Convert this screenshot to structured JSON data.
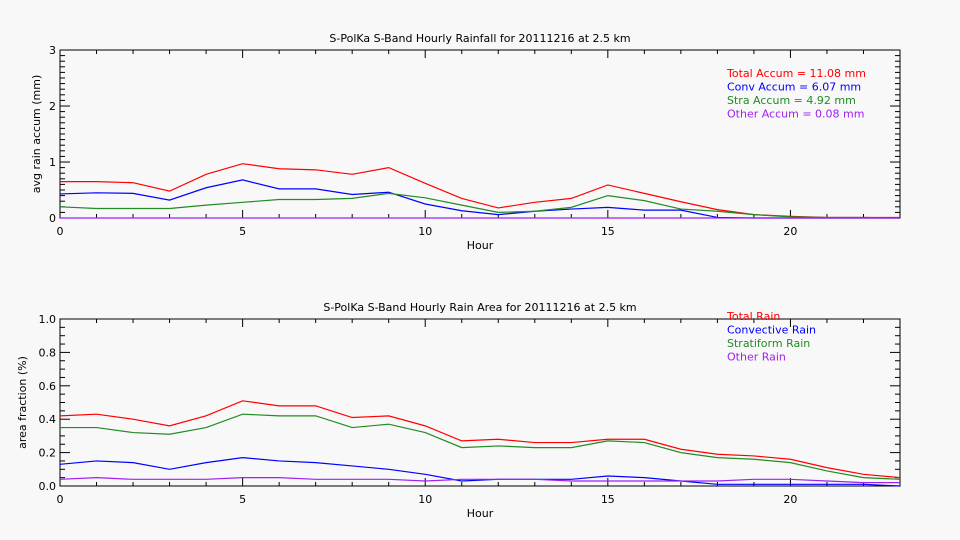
{
  "colors": {
    "total": "#ff0000",
    "convective": "#0000ff",
    "stratiform": "#228b22",
    "other": "#a020f0",
    "axes": "#000000",
    "background": "#f8f8f8"
  },
  "chart_data": [
    {
      "type": "line",
      "title": "S-PolKa S-Band Hourly Rainfall for 20111216 at 2.5 km",
      "xlabel": "Hour",
      "ylabel": "avg rain accum (mm)",
      "xlim": [
        0,
        23
      ],
      "ylim": [
        0,
        3
      ],
      "xticks": [
        "0",
        "5",
        "10",
        "15",
        "20"
      ],
      "yticks": [
        "0",
        "1",
        "2",
        "3"
      ],
      "legend_position": "top-right",
      "x": [
        0,
        1,
        2,
        3,
        4,
        5,
        6,
        7,
        8,
        9,
        10,
        11,
        12,
        13,
        14,
        15,
        16,
        17,
        18,
        19,
        20,
        21,
        22,
        23
      ],
      "series": [
        {
          "name": "Total Accum = 11.08 mm",
          "color_key": "total",
          "values": [
            0.65,
            0.65,
            0.63,
            0.48,
            0.78,
            0.97,
            0.88,
            0.86,
            0.78,
            0.9,
            0.62,
            0.35,
            0.18,
            0.28,
            0.35,
            0.59,
            0.44,
            0.29,
            0.15,
            0.06,
            0.03,
            0.01,
            0.01,
            0.01
          ]
        },
        {
          "name": "Conv Accum = 6.07 mm",
          "color_key": "convective",
          "values": [
            0.43,
            0.45,
            0.44,
            0.32,
            0.54,
            0.68,
            0.52,
            0.52,
            0.42,
            0.46,
            0.25,
            0.13,
            0.06,
            0.12,
            0.16,
            0.19,
            0.14,
            0.14,
            0.01,
            0,
            0,
            0,
            0,
            0
          ]
        },
        {
          "name": "Stra Accum = 4.92 mm",
          "color_key": "stratiform",
          "values": [
            0.2,
            0.17,
            0.17,
            0.17,
            0.23,
            0.28,
            0.33,
            0.33,
            0.35,
            0.44,
            0.36,
            0.23,
            0.1,
            0.12,
            0.19,
            0.4,
            0.31,
            0.16,
            0.12,
            0.06,
            0.02,
            0.01,
            0.01,
            0
          ]
        },
        {
          "name": "Other Accum = 0.08 mm",
          "color_key": "other",
          "values": [
            0,
            0,
            0,
            0,
            0,
            0,
            0,
            0,
            0,
            0,
            0,
            0,
            0,
            0,
            0,
            0,
            0,
            0,
            0,
            0,
            0,
            0,
            0,
            0
          ]
        }
      ]
    },
    {
      "type": "line",
      "title": "S-PolKa S-Band Hourly Rain Area for 20111216 at 2.5 km",
      "xlabel": "Hour",
      "ylabel": "area fraction (%)",
      "xlim": [
        0,
        23
      ],
      "ylim": [
        0,
        1
      ],
      "xticks": [
        "0",
        "5",
        "10",
        "15",
        "20"
      ],
      "yticks": [
        "0.0",
        "0.2",
        "0.4",
        "0.6",
        "0.8",
        "1.0"
      ],
      "legend_position": "top-right",
      "x": [
        0,
        1,
        2,
        3,
        4,
        5,
        6,
        7,
        8,
        9,
        10,
        11,
        12,
        13,
        14,
        15,
        16,
        17,
        18,
        19,
        20,
        21,
        22,
        23
      ],
      "series": [
        {
          "name": "Total Rain",
          "color_key": "total",
          "values": [
            0.42,
            0.43,
            0.4,
            0.36,
            0.42,
            0.51,
            0.48,
            0.48,
            0.41,
            0.42,
            0.36,
            0.27,
            0.28,
            0.26,
            0.26,
            0.28,
            0.28,
            0.22,
            0.19,
            0.18,
            0.16,
            0.11,
            0.07,
            0.05
          ]
        },
        {
          "name": "Convective Rain",
          "color_key": "convective",
          "values": [
            0.13,
            0.15,
            0.14,
            0.1,
            0.14,
            0.17,
            0.15,
            0.14,
            0.12,
            0.1,
            0.07,
            0.03,
            0.04,
            0.04,
            0.04,
            0.06,
            0.05,
            0.03,
            0.01,
            0.01,
            0.01,
            0.01,
            0.01,
            0.0
          ]
        },
        {
          "name": "Stratiform Rain",
          "color_key": "stratiform",
          "values": [
            0.35,
            0.35,
            0.32,
            0.31,
            0.35,
            0.43,
            0.42,
            0.42,
            0.35,
            0.37,
            0.32,
            0.23,
            0.24,
            0.23,
            0.23,
            0.27,
            0.26,
            0.2,
            0.17,
            0.16,
            0.14,
            0.09,
            0.05,
            0.04
          ]
        },
        {
          "name": "Other Rain",
          "color_key": "other",
          "values": [
            0.04,
            0.05,
            0.04,
            0.04,
            0.04,
            0.05,
            0.05,
            0.04,
            0.04,
            0.04,
            0.03,
            0.04,
            0.04,
            0.04,
            0.03,
            0.03,
            0.03,
            0.03,
            0.03,
            0.04,
            0.04,
            0.03,
            0.02,
            0.02
          ]
        }
      ]
    }
  ]
}
